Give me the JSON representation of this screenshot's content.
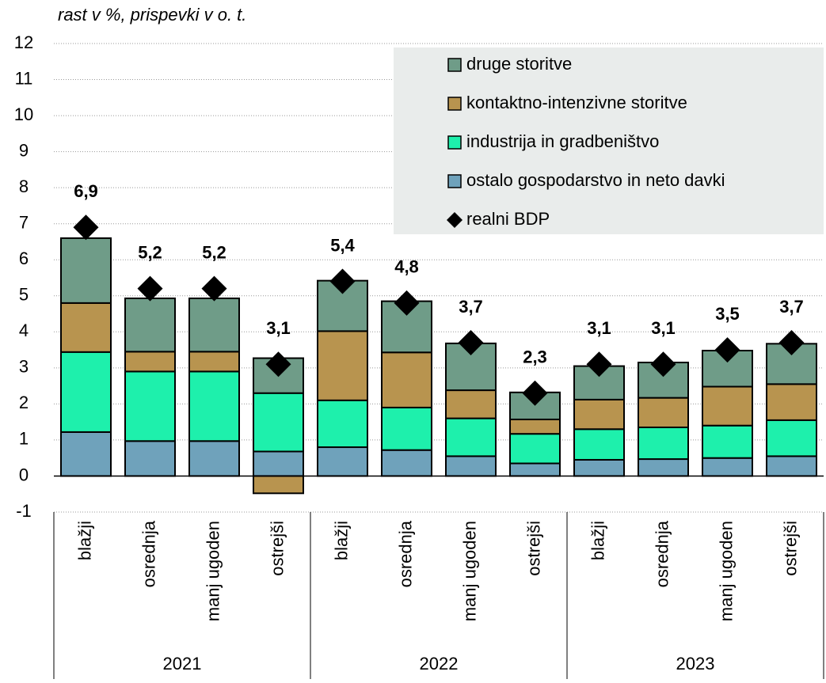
{
  "chart_data": {
    "type": "stacked-bar",
    "y_label": "rast v %, prispevki v o. t.",
    "categories": [
      "blažji",
      "osrednja",
      "manj ugoden",
      "ostrejši",
      "blažji",
      "osrednja",
      "manj ugoden",
      "ostrejši",
      "blažji",
      "osrednja",
      "manj ugoden",
      "ostrejši"
    ],
    "groups": [
      "2021",
      "2022",
      "2023"
    ],
    "series": [
      {
        "name": "ostalo gospodarstvo in neto davki",
        "color": "#6fa2bb",
        "values": [
          1.22,
          0.97,
          0.97,
          0.68,
          0.8,
          0.72,
          0.55,
          0.35,
          0.45,
          0.47,
          0.5,
          0.55
        ]
      },
      {
        "name": "industrija in gradbeništvo",
        "color": "#1ef0ac",
        "values": [
          2.22,
          1.93,
          1.93,
          1.62,
          1.3,
          1.18,
          1.05,
          0.82,
          0.85,
          0.88,
          0.9,
          1.0
        ]
      },
      {
        "name": "kontaktno-intenzivne storitve",
        "color": "#b8944f",
        "values": [
          1.36,
          0.55,
          0.55,
          -0.48,
          1.92,
          1.53,
          0.78,
          0.4,
          0.82,
          0.82,
          1.08,
          1.0
        ]
      },
      {
        "name": "druge storitve",
        "color": "#6f9c88",
        "values": [
          1.8,
          1.48,
          1.48,
          0.97,
          1.4,
          1.42,
          1.3,
          0.75,
          0.93,
          0.98,
          1.0,
          1.12
        ]
      }
    ],
    "points": {
      "name": "realni BDP",
      "color": "#000000",
      "values": [
        6.9,
        5.2,
        5.2,
        3.1,
        5.4,
        4.8,
        3.7,
        2.3,
        3.1,
        3.1,
        3.5,
        3.7
      ],
      "value_labels": [
        "6,9",
        "5,2",
        "5,2",
        "3,1",
        "5,4",
        "4,8",
        "3,7",
        "2,3",
        "3,1",
        "3,1",
        "3,5",
        "3,7"
      ]
    },
    "ylim": [
      -1,
      12
    ],
    "yticks": [
      -1,
      0,
      1,
      2,
      3,
      4,
      5,
      6,
      7,
      8,
      9,
      10,
      11,
      12
    ],
    "grid": true
  }
}
